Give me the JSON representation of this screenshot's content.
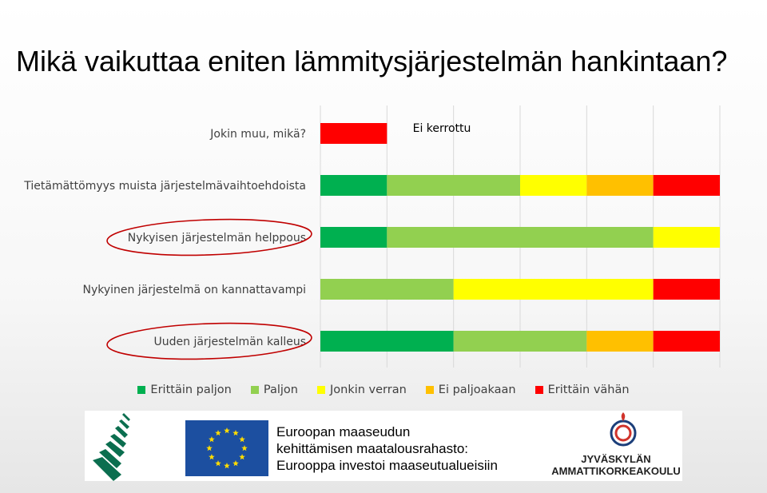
{
  "page": {
    "title": "Mikä vaikuttaa eniten lämmitysjärjestelmän hankintaan?"
  },
  "chart_data": {
    "type": "bar",
    "orientation": "horizontal",
    "stacked": true,
    "title": "Mikä vaikuttaa eniten lämmitysjärjestelmän hankintaan?",
    "categories": [
      "Jokin muu, mikä?",
      "Tietämättömyys muista järjestelmävaihtoehdoista",
      "Nykyisen järjestelmän helppous",
      "Nykyinen järjestelmä on kannattavampi",
      "Uuden järjestelmän kalleus"
    ],
    "series": [
      {
        "name": "Erittäin paljon",
        "color": "#00b050",
        "values": [
          0,
          1,
          1,
          0,
          2
        ]
      },
      {
        "name": "Paljon",
        "color": "#92d050",
        "values": [
          0,
          2,
          4,
          2,
          2
        ]
      },
      {
        "name": "Jonkin verran",
        "color": "#ffff00",
        "values": [
          0,
          1,
          1,
          3,
          0
        ]
      },
      {
        "name": "Ei paljoakaan",
        "color": "#ffc000",
        "values": [
          0,
          1,
          0,
          0,
          1
        ]
      },
      {
        "name": "Erittäin vähän",
        "color": "#ff0000",
        "values": [
          1,
          1,
          0,
          1,
          1
        ]
      }
    ],
    "xlim": [
      0,
      6
    ],
    "grid": true,
    "legend": "bottom",
    "annotations": [
      {
        "text": "Ei kerrottu",
        "category": "Jokin muu, mikä?"
      }
    ],
    "highlighted_categories": [
      "Nykyisen järjestelmän helppous",
      "Uuden järjestelmän kalleus"
    ]
  },
  "footer": {
    "eu_text_lines": [
      "Euroopan maaseudun",
      "kehittämisen maatalousrahasto:",
      "Eurooppa investoi maaseutualueisiin"
    ],
    "jamk_lines": [
      "JYVÄSKYLÄN",
      "AMMATTIKORKEAKOULU"
    ],
    "eu_flag_color": "#1c4fa0",
    "eu_star_color": "#ffdd00"
  }
}
